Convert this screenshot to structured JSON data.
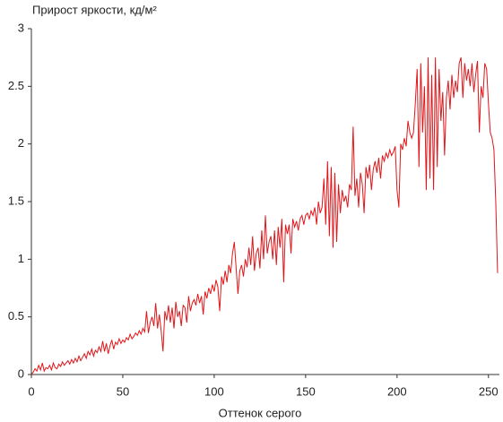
{
  "chart_data": {
    "type": "line",
    "title": "Прирост яркости, кд/м²",
    "x_label": "Оттенок серого",
    "x": [
      0,
      1,
      2,
      3,
      4,
      5,
      6,
      7,
      8,
      9,
      10,
      11,
      12,
      13,
      14,
      15,
      16,
      17,
      18,
      19,
      20,
      21,
      22,
      23,
      24,
      25,
      26,
      27,
      28,
      29,
      30,
      31,
      32,
      33,
      34,
      35,
      36,
      37,
      38,
      39,
      40,
      41,
      42,
      43,
      44,
      45,
      46,
      47,
      48,
      49,
      50,
      51,
      52,
      53,
      54,
      55,
      56,
      57,
      58,
      59,
      60,
      61,
      62,
      63,
      64,
      65,
      66,
      67,
      68,
      69,
      70,
      71,
      72,
      73,
      74,
      75,
      76,
      77,
      78,
      79,
      80,
      81,
      82,
      83,
      84,
      85,
      86,
      87,
      88,
      89,
      90,
      91,
      92,
      93,
      94,
      95,
      96,
      97,
      98,
      99,
      100,
      101,
      102,
      103,
      104,
      105,
      106,
      107,
      108,
      109,
      110,
      111,
      112,
      113,
      114,
      115,
      116,
      117,
      118,
      119,
      120,
      121,
      122,
      123,
      124,
      125,
      126,
      127,
      128,
      129,
      130,
      131,
      132,
      133,
      134,
      135,
      136,
      137,
      138,
      139,
      140,
      141,
      142,
      143,
      144,
      145,
      146,
      147,
      148,
      149,
      150,
      151,
      152,
      153,
      154,
      155,
      156,
      157,
      158,
      159,
      160,
      161,
      162,
      163,
      164,
      165,
      166,
      167,
      168,
      169,
      170,
      171,
      172,
      173,
      174,
      175,
      176,
      177,
      178,
      179,
      180,
      181,
      182,
      183,
      184,
      185,
      186,
      187,
      188,
      189,
      190,
      191,
      192,
      193,
      194,
      195,
      196,
      197,
      198,
      199,
      200,
      201,
      202,
      203,
      204,
      205,
      206,
      207,
      208,
      209,
      210,
      211,
      212,
      213,
      214,
      215,
      216,
      217,
      218,
      219,
      220,
      221,
      222,
      223,
      224,
      225,
      226,
      227,
      228,
      229,
      230,
      231,
      232,
      233,
      234,
      235,
      236,
      237,
      238,
      239,
      240,
      241,
      242,
      243,
      244,
      245,
      246,
      247,
      248,
      249,
      250,
      251,
      252,
      253,
      254,
      255
    ],
    "series": [
      {
        "color": "#e0161a",
        "values": [
          0,
          0.02,
          0.05,
          0.03,
          0.08,
          0.04,
          0.1,
          0.03,
          0.06,
          0.05,
          0.08,
          0.04,
          0.1,
          0.06,
          0.05,
          0.09,
          0.07,
          0.11,
          0.08,
          0.1,
          0.12,
          0.09,
          0.13,
          0.1,
          0.14,
          0.11,
          0.16,
          0.12,
          0.15,
          0.18,
          0.14,
          0.2,
          0.17,
          0.22,
          0.16,
          0.21,
          0.19,
          0.24,
          0.2,
          0.29,
          0.2,
          0.27,
          0.18,
          0.25,
          0.3,
          0.22,
          0.28,
          0.26,
          0.31,
          0.27,
          0.3,
          0.28,
          0.32,
          0.3,
          0.35,
          0.31,
          0.33,
          0.36,
          0.34,
          0.38,
          0.35,
          0.4,
          0.37,
          0.55,
          0.36,
          0.45,
          0.5,
          0.42,
          0.62,
          0.4,
          0.52,
          0.38,
          0.2,
          0.55,
          0.47,
          0.6,
          0.45,
          0.58,
          0.4,
          0.63,
          0.5,
          0.55,
          0.42,
          0.6,
          0.58,
          0.45,
          0.68,
          0.55,
          0.62,
          0.65,
          0.6,
          0.7,
          0.62,
          0.68,
          0.52,
          0.72,
          0.66,
          0.75,
          0.7,
          0.78,
          0.72,
          0.82,
          0.76,
          0.55,
          0.85,
          0.78,
          0.9,
          0.8,
          0.95,
          0.88,
          1.05,
          1.15,
          0.92,
          0.7,
          0.9,
          0.95,
          0.85,
          1.0,
          0.93,
          1.1,
          0.95,
          1.2,
          0.9,
          1.05,
          1.1,
          0.92,
          1.25,
          1.0,
          1.38,
          1.05,
          1.15,
          1.2,
          1.0,
          1.25,
          0.95,
          1.28,
          1.1,
          1.35,
          0.8,
          1.3,
          1.22,
          1.3,
          1.05,
          1.35,
          1.28,
          1.33,
          1.25,
          1.35,
          1.38,
          1.3,
          1.38,
          1.4,
          1.35,
          1.42,
          1.38,
          1.45,
          1.3,
          1.5,
          1.4,
          1.45,
          1.7,
          1.3,
          1.85,
          1.2,
          1.8,
          1.1,
          1.75,
          1.15,
          1.65,
          1.4,
          1.6,
          1.5,
          1.55,
          1.45,
          1.65,
          1.6,
          2.15,
          1.55,
          1.7,
          1.45,
          1.75,
          1.65,
          1.4,
          1.8,
          1.7,
          1.82,
          1.6,
          1.78,
          1.85,
          1.75,
          1.88,
          1.7,
          1.9,
          1.85,
          1.92,
          1.88,
          1.95,
          1.9,
          1.93,
          1.98,
          1.6,
          1.45,
          2.0,
          1.95,
          2.05,
          1.98,
          2.2,
          2.1,
          2.05,
          2.1,
          2.35,
          2.65,
          1.8,
          2.7,
          2.1,
          2.5,
          1.6,
          2.75,
          1.7,
          2.6,
          1.6,
          2.75,
          1.8,
          2.65,
          2.2,
          2.45,
          1.9,
          2.4,
          2.55,
          2.3,
          2.6,
          2.4,
          2.55,
          2.45,
          2.7,
          2.75,
          2.4,
          2.7,
          2.55,
          2.65,
          2.5,
          2.7,
          2.45,
          2.6,
          2.72,
          2.1,
          2.5,
          2.4,
          2.7,
          2.65,
          2.35,
          2.1,
          2.05,
          1.95,
          1.5,
          0.88
        ]
      }
    ],
    "xlim": [
      0,
      256
    ],
    "xticks": [
      0,
      50,
      100,
      150,
      200,
      250
    ],
    "ylim": [
      0,
      3
    ],
    "yticks": [
      0,
      0.5,
      1,
      1.5,
      2,
      2.5,
      3
    ],
    "grid": false
  }
}
